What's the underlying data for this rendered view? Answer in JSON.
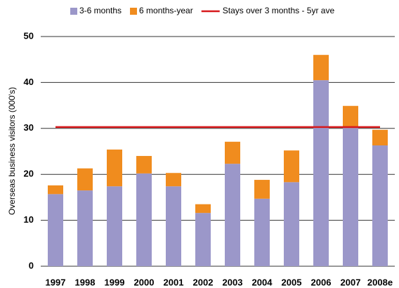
{
  "chart_data": {
    "type": "bar",
    "stacked": true,
    "y_label": "Overseas business visitors (000's)",
    "categories": [
      "1997",
      "1998",
      "1999",
      "2000",
      "2001",
      "2002",
      "2003",
      "2004",
      "2005",
      "2006",
      "2007",
      "2008e"
    ],
    "series": [
      {
        "name": "3-6 months",
        "type": "bar",
        "color": "#9b97c9",
        "values": [
          15.7,
          16.5,
          17.4,
          20.2,
          17.4,
          11.6,
          22.3,
          14.7,
          18.3,
          40.5,
          30.1,
          26.3
        ]
      },
      {
        "name": "6 months-year",
        "type": "bar",
        "color": "#f08c1e",
        "values": [
          1.9,
          4.8,
          8.0,
          3.8,
          2.9,
          1.9,
          4.8,
          4.1,
          6.9,
          5.5,
          4.8,
          3.4
        ]
      },
      {
        "name": "Stays over 3 months - 5yr ave",
        "type": "line",
        "color": "#d7191c",
        "values": [
          30.3,
          30.3,
          30.3,
          30.3,
          30.3,
          30.3,
          30.3,
          30.3,
          30.3,
          30.3,
          30.3,
          30.3
        ]
      }
    ],
    "ylim": [
      0,
      50
    ],
    "yticks": [
      0,
      10,
      20,
      30,
      40,
      50
    ],
    "grid": true,
    "legend": "top"
  }
}
